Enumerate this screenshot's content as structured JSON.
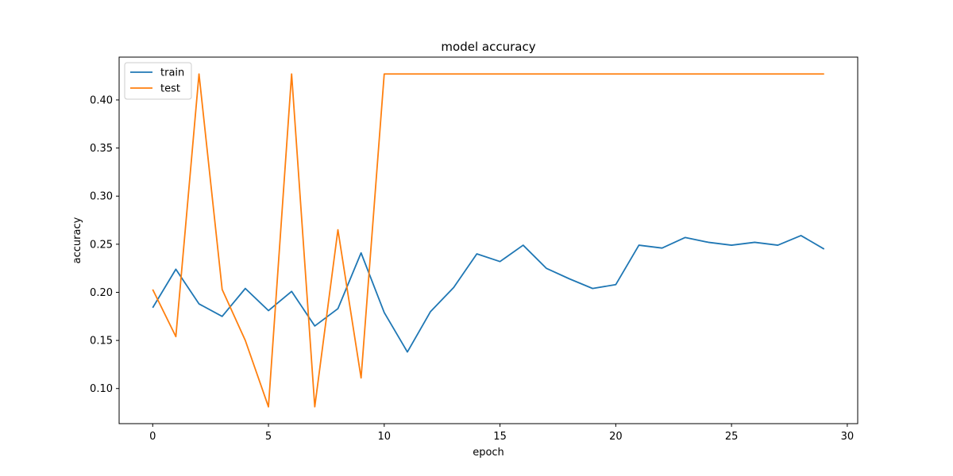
{
  "chart_data": {
    "type": "line",
    "title": "model accuracy",
    "xlabel": "epoch",
    "ylabel": "accuracy",
    "xlim": [
      -1.45,
      30.45
    ],
    "ylim": [
      0.0635,
      0.4445
    ],
    "xticks": [
      0,
      5,
      10,
      15,
      20,
      25,
      30
    ],
    "yticks": [
      0.1,
      0.15,
      0.2,
      0.25,
      0.3,
      0.35,
      0.4
    ],
    "ytick_labels": [
      "0.10",
      "0.15",
      "0.20",
      "0.25",
      "0.30",
      "0.35",
      "0.40"
    ],
    "grid": false,
    "legend_position": "upper left",
    "x": [
      0,
      1,
      2,
      3,
      4,
      5,
      6,
      7,
      8,
      9,
      10,
      11,
      12,
      13,
      14,
      15,
      16,
      17,
      18,
      19,
      20,
      21,
      22,
      23,
      24,
      25,
      26,
      27,
      28,
      29
    ],
    "series": [
      {
        "name": "train",
        "color": "#1f77b4",
        "values": [
          0.184,
          0.224,
          0.188,
          0.175,
          0.204,
          0.181,
          0.201,
          0.165,
          0.183,
          0.241,
          0.179,
          0.138,
          0.18,
          0.205,
          0.24,
          0.232,
          0.249,
          0.225,
          0.214,
          0.204,
          0.208,
          0.249,
          0.246,
          0.257,
          0.252,
          0.249,
          0.252,
          0.249,
          0.259,
          0.245
        ]
      },
      {
        "name": "test",
        "color": "#ff7f0e",
        "values": [
          0.203,
          0.154,
          0.427,
          0.203,
          0.15,
          0.081,
          0.427,
          0.081,
          0.265,
          0.111,
          0.427,
          0.427,
          0.427,
          0.427,
          0.427,
          0.427,
          0.427,
          0.427,
          0.427,
          0.427,
          0.427,
          0.427,
          0.427,
          0.427,
          0.427,
          0.427,
          0.427,
          0.427,
          0.427,
          0.427
        ]
      }
    ]
  }
}
